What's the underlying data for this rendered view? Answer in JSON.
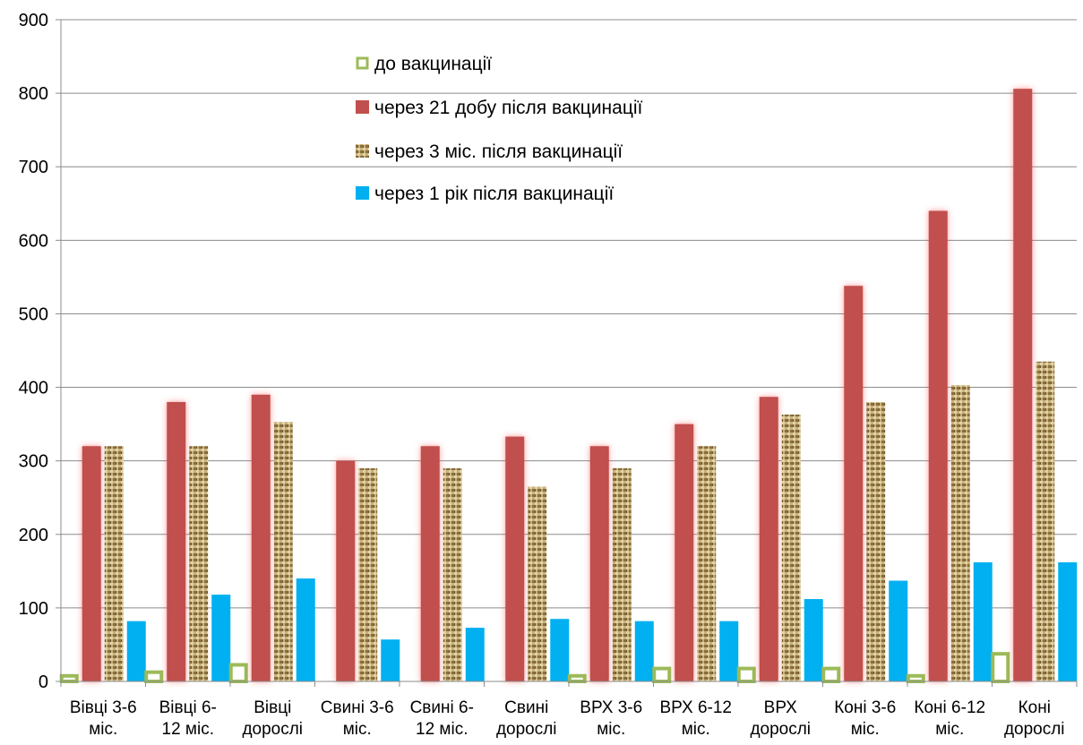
{
  "chart_data": {
    "type": "bar",
    "title": "",
    "xlabel": "",
    "ylabel": "",
    "ylim": [
      0,
      900
    ],
    "yticks": [
      0,
      100,
      200,
      300,
      400,
      500,
      600,
      700,
      800,
      900
    ],
    "grid": true,
    "legend_position": "top-center",
    "categories": [
      [
        "Вівці 3-6",
        "міс."
      ],
      [
        "Вівці 6-",
        "12 міс."
      ],
      [
        "Вівці",
        "дорослі"
      ],
      [
        "Свині 3-6",
        "міс."
      ],
      [
        "Свині 6-",
        "12 міс."
      ],
      [
        "Свині",
        "дорослі"
      ],
      [
        "ВРХ 3-6",
        "міс."
      ],
      [
        "ВРХ 6-12",
        "міс."
      ],
      [
        "ВРХ",
        "дорослі"
      ],
      [
        "Коні 3-6",
        "міс."
      ],
      [
        "Коні 6-12",
        "міс."
      ],
      [
        "Коні",
        "дорослі"
      ]
    ],
    "series": [
      {
        "name": "до вакцинації",
        "color": "#9bbb59",
        "style": "outline",
        "values": [
          10,
          15,
          25,
          0,
          0,
          0,
          10,
          20,
          20,
          20,
          10,
          40
        ]
      },
      {
        "name": "через 21 добу після вакцинації",
        "color": "#c0504d",
        "style": "glow",
        "values": [
          320,
          380,
          390,
          300,
          320,
          333,
          320,
          350,
          387,
          538,
          640,
          806
        ]
      },
      {
        "name": "через 3 міс. після вакцинації",
        "color": "#b8a06a",
        "style": "texture",
        "values": [
          320,
          320,
          353,
          290,
          290,
          265,
          290,
          320,
          363,
          380,
          403,
          435
        ]
      },
      {
        "name": "через 1 рік після вакцинації",
        "color": "#00b0f0",
        "style": "solid",
        "values": [
          82,
          118,
          140,
          57,
          73,
          85,
          82,
          82,
          112,
          137,
          162,
          162
        ]
      }
    ]
  }
}
